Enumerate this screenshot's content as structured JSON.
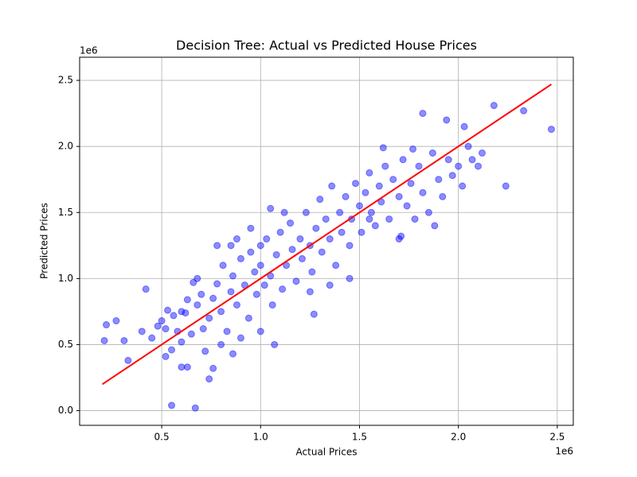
{
  "chart_data": {
    "type": "scatter",
    "title": "Decision Tree: Actual vs Predicted House Prices",
    "x_label": "Actual Prices",
    "y_label": "Predicted Prices",
    "x_offset": "1e6",
    "y_offset": "1e6",
    "color": "#0000ff",
    "line_color": "#ff0000",
    "grid": true,
    "xlim": [
      0.085,
      2.581
    ],
    "ylim": [
      -0.111,
      2.675
    ],
    "xticks": [
      {
        "value": 0.5,
        "label": "0.5"
      },
      {
        "value": 1.0,
        "label": "1.0"
      },
      {
        "value": 1.5,
        "label": "1.5"
      },
      {
        "value": 2.0,
        "label": "2.0"
      },
      {
        "value": 2.5,
        "label": "2.5"
      }
    ],
    "yticks": [
      {
        "value": 0.0,
        "label": "0.0"
      },
      {
        "value": 0.5,
        "label": "0.5"
      },
      {
        "value": 1.0,
        "label": "1.0"
      },
      {
        "value": 1.5,
        "label": "1.5"
      },
      {
        "value": 2.0,
        "label": "2.0"
      },
      {
        "value": 2.5,
        "label": "2.5"
      }
    ],
    "x": [
      0.21,
      0.22,
      0.27,
      0.31,
      0.33,
      0.42,
      0.55,
      0.67,
      0.74,
      0.63,
      0.6,
      0.76,
      1.07,
      1.27,
      2.47,
      2.33,
      2.24,
      2.18,
      1.82,
      1.94,
      2.03,
      0.52,
      0.55,
      0.86,
      0.68,
      0.78,
      0.88,
      1.05,
      1.62,
      1.77,
      1.88,
      1.71,
      1.55,
      0.4,
      0.45,
      0.48,
      0.5,
      0.52,
      0.53,
      0.56,
      0.58,
      0.6,
      0.62,
      0.63,
      0.65,
      0.66,
      0.68,
      0.7,
      0.71,
      0.72,
      0.74,
      0.76,
      0.78,
      0.8,
      0.81,
      0.83,
      0.85,
      0.86,
      0.88,
      0.9,
      0.92,
      0.94,
      0.95,
      0.97,
      0.98,
      1.0,
      1.0,
      1.02,
      1.03,
      1.05,
      1.06,
      1.08,
      1.1,
      1.11,
      1.13,
      1.15,
      1.16,
      1.18,
      1.2,
      1.21,
      1.23,
      1.25,
      1.26,
      1.28,
      1.3,
      1.31,
      1.33,
      1.35,
      1.36,
      1.38,
      1.4,
      1.41,
      1.43,
      1.45,
      1.46,
      1.48,
      1.5,
      1.51,
      1.53,
      1.55,
      1.56,
      1.58,
      1.6,
      1.61,
      1.63,
      1.65,
      1.67,
      1.7,
      1.72,
      1.74,
      1.76,
      1.78,
      1.8,
      1.82,
      1.85,
      1.87,
      1.9,
      1.92,
      1.95,
      1.97,
      2.0,
      2.02,
      2.05,
      2.07,
      2.1,
      2.12,
      1.25,
      1.45,
      1.35,
      0.95,
      1.12,
      0.85,
      1.7,
      1.0,
      0.9,
      0.8,
      0.6
    ],
    "y": [
      0.53,
      0.65,
      0.68,
      0.53,
      0.38,
      0.92,
      0.04,
      0.02,
      0.24,
      0.33,
      0.33,
      0.32,
      0.5,
      0.73,
      2.13,
      2.27,
      1.7,
      2.31,
      2.25,
      2.2,
      2.15,
      0.41,
      0.46,
      0.43,
      1.0,
      1.25,
      1.3,
      1.53,
      1.99,
      1.98,
      1.4,
      1.32,
      1.45,
      0.6,
      0.55,
      0.64,
      0.68,
      0.62,
      0.76,
      0.72,
      0.6,
      0.52,
      0.74,
      0.84,
      0.58,
      0.97,
      0.8,
      0.88,
      0.62,
      0.45,
      0.7,
      0.85,
      0.96,
      0.75,
      1.1,
      0.6,
      0.9,
      1.02,
      0.8,
      1.15,
      0.95,
      0.7,
      1.2,
      1.05,
      0.88,
      1.1,
      1.25,
      0.95,
      1.3,
      1.02,
      0.8,
      1.18,
      1.35,
      0.92,
      1.1,
      1.42,
      1.22,
      0.98,
      1.3,
      1.15,
      1.5,
      1.25,
      1.05,
      1.38,
      1.6,
      1.2,
      1.45,
      1.3,
      1.7,
      1.1,
      1.5,
      1.35,
      1.62,
      1.25,
      1.45,
      1.72,
      1.55,
      1.35,
      1.65,
      1.8,
      1.5,
      1.4,
      1.7,
      1.58,
      1.85,
      1.45,
      1.75,
      1.62,
      1.9,
      1.55,
      1.72,
      1.45,
      1.85,
      1.65,
      1.5,
      1.95,
      1.75,
      1.62,
      1.9,
      1.78,
      1.85,
      1.7,
      2.0,
      1.9,
      1.85,
      1.95,
      0.9,
      1.0,
      0.95,
      1.38,
      1.5,
      1.25,
      1.3,
      0.6,
      0.55,
      0.5,
      0.75
    ],
    "line_x": [
      0.2,
      2.47
    ],
    "line_y": [
      0.2,
      2.47
    ]
  }
}
